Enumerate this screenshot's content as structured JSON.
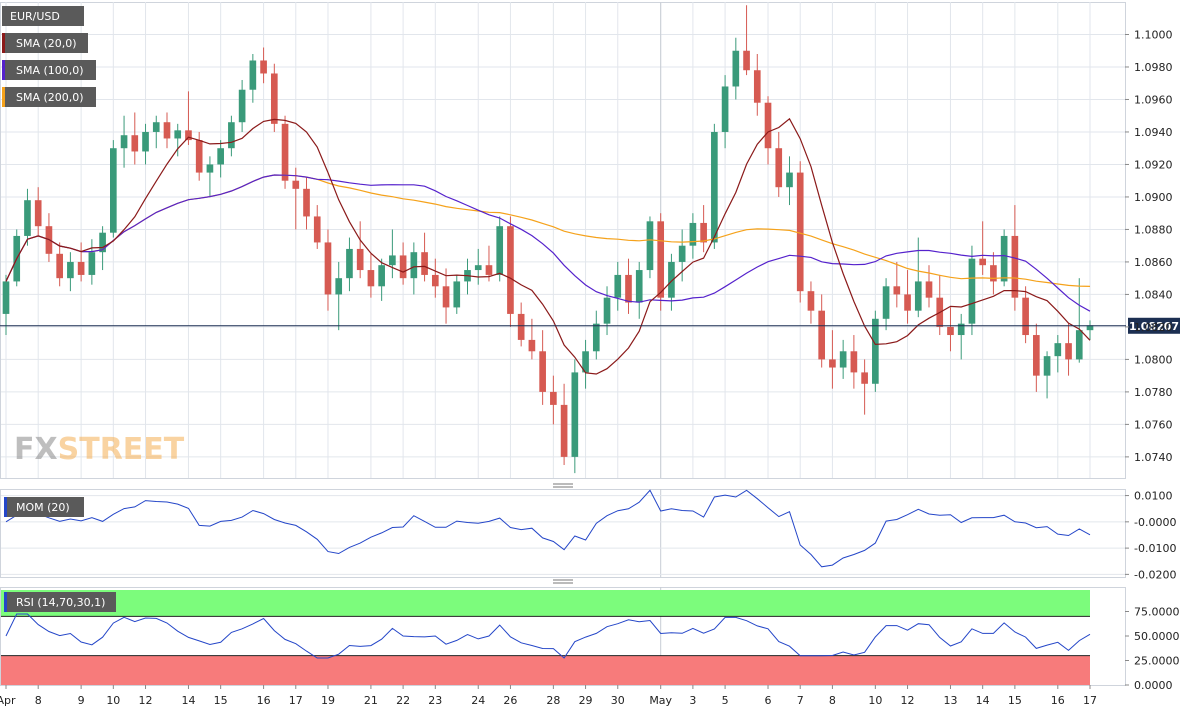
{
  "symbol": "EUR/USD",
  "watermark": {
    "fx": "FX",
    "street": "STREET"
  },
  "colors": {
    "up": "#3a9a7a",
    "down": "#d65a52",
    "sma20": "#8b1a1a",
    "sma100": "#5522cc",
    "sma200": "#f5a21b",
    "mom": "#2446c8",
    "rsi": "#2446c8",
    "rsi_overbought_fill": "#7cfc7c",
    "rsi_oversold_fill": "#f77b7b",
    "price_line": "#1c2f52",
    "grid": "#e2e6ec",
    "label_bg": "#5a5a5a"
  },
  "price_panel": {
    "last_price": "1.08207",
    "last_price_value": 1.08207,
    "ylim": [
      1.0727,
      1.102
    ],
    "yticks": [
      "1.1000",
      "1.0980",
      "1.0960",
      "1.0940",
      "1.0920",
      "1.0900",
      "1.0880",
      "1.0860",
      "1.0840",
      "1.0820",
      "1.0800",
      "1.0780",
      "1.0760",
      "1.0740"
    ],
    "indicators": [
      {
        "label": "SMA (20,0)",
        "color_key": "sma20"
      },
      {
        "label": "SMA (100,0)",
        "color_key": "sma100"
      },
      {
        "label": "SMA (200,0)",
        "color_key": "sma200"
      }
    ]
  },
  "mom_panel": {
    "label": "MOM (20)",
    "ylim": [
      -0.021,
      0.0125
    ],
    "yticks": [
      "0.0100",
      "-0.0000",
      "-0.0100",
      "-0.0200"
    ]
  },
  "rsi_panel": {
    "label": "RSI (14,70,30,1)",
    "ylim": [
      0,
      100
    ],
    "upper": 70,
    "lower": 30,
    "yticks": [
      "75.0000",
      "50.0000",
      "25.0000",
      "0.0000"
    ]
  },
  "x_labels": [
    "Apr",
    "8",
    "9",
    "10",
    "12",
    "14",
    "15",
    "16",
    "17",
    "19",
    "21",
    "22",
    "23",
    "24",
    "26",
    "28",
    "29",
    "30",
    "May",
    "3",
    "5",
    "6",
    "7",
    "8",
    "10",
    "12",
    "13",
    "14",
    "15",
    "16",
    "17"
  ],
  "chart_data": {
    "type": "candlestick",
    "symbol": "EUR/USD",
    "last_price": 1.08207,
    "candles": [
      [
        1.0828,
        1.0852,
        1.0815,
        1.0848
      ],
      [
        1.0848,
        1.088,
        1.0845,
        1.0876
      ],
      [
        1.0876,
        1.0905,
        1.087,
        1.0898
      ],
      [
        1.0898,
        1.0906,
        1.0876,
        1.0882
      ],
      [
        1.0882,
        1.089,
        1.086,
        1.0865
      ],
      [
        1.0865,
        1.0872,
        1.0845,
        1.085
      ],
      [
        1.085,
        1.0866,
        1.0842,
        1.086
      ],
      [
        1.086,
        1.0872,
        1.0848,
        1.0852
      ],
      [
        1.0852,
        1.0874,
        1.0846,
        1.0866
      ],
      [
        1.0866,
        1.0882,
        1.0855,
        1.0878
      ],
      [
        1.0878,
        1.0935,
        1.0875,
        1.093
      ],
      [
        1.093,
        1.095,
        1.0918,
        1.0938
      ],
      [
        1.0938,
        1.0952,
        1.092,
        1.0928
      ],
      [
        1.0928,
        1.0945,
        1.092,
        1.094
      ],
      [
        1.094,
        1.095,
        1.093,
        1.0946
      ],
      [
        1.0946,
        1.0952,
        1.093,
        1.0936
      ],
      [
        1.0936,
        1.0945,
        1.0925,
        1.0941
      ],
      [
        1.0941,
        1.0965,
        1.0932,
        1.0935
      ],
      [
        1.0935,
        1.094,
        1.091,
        1.0915
      ],
      [
        1.0915,
        1.0925,
        1.09,
        1.092
      ],
      [
        1.092,
        1.0935,
        1.0912,
        1.093
      ],
      [
        1.093,
        1.095,
        1.0925,
        1.0946
      ],
      [
        1.0946,
        1.0972,
        1.094,
        1.0966
      ],
      [
        1.0966,
        1.0988,
        1.0958,
        1.0984
      ],
      [
        1.0984,
        1.0992,
        1.097,
        1.0976
      ],
      [
        1.0976,
        1.0982,
        1.094,
        1.0945
      ],
      [
        1.0945,
        1.095,
        1.0905,
        1.091
      ],
      [
        1.091,
        1.0918,
        1.088,
        1.0905
      ],
      [
        1.0905,
        1.0912,
        1.088,
        1.0888
      ],
      [
        1.0888,
        1.0895,
        1.0868,
        1.0872
      ],
      [
        1.0872,
        1.088,
        1.083,
        1.084
      ],
      [
        1.084,
        1.086,
        1.0818,
        1.085
      ],
      [
        1.085,
        1.0875,
        1.0842,
        1.0868
      ],
      [
        1.0868,
        1.0885,
        1.085,
        1.0855
      ],
      [
        1.0855,
        1.0865,
        1.0838,
        1.0845
      ],
      [
        1.0845,
        1.0862,
        1.0836,
        1.0858
      ],
      [
        1.0858,
        1.088,
        1.085,
        1.0864
      ],
      [
        1.0864,
        1.0872,
        1.0846,
        1.085
      ],
      [
        1.085,
        1.0872,
        1.084,
        1.0866
      ],
      [
        1.0866,
        1.0878,
        1.0848,
        1.0852
      ],
      [
        1.0852,
        1.0862,
        1.0838,
        1.0845
      ],
      [
        1.0845,
        1.0856,
        1.0822,
        1.0832
      ],
      [
        1.0832,
        1.0852,
        1.0828,
        1.0848
      ],
      [
        1.0848,
        1.0862,
        1.084,
        1.0855
      ],
      [
        1.0855,
        1.0868,
        1.0846,
        1.0858
      ],
      [
        1.0858,
        1.087,
        1.0848,
        1.0852
      ],
      [
        1.0852,
        1.0888,
        1.0848,
        1.0882
      ],
      [
        1.0882,
        1.0888,
        1.082,
        1.0828
      ],
      [
        1.0828,
        1.0835,
        1.0808,
        1.0812
      ],
      [
        1.0812,
        1.0825,
        1.08,
        1.0805
      ],
      [
        1.0805,
        1.0818,
        1.0772,
        1.078
      ],
      [
        1.078,
        1.079,
        1.076,
        1.0772
      ],
      [
        1.0772,
        1.0785,
        1.0735,
        1.074
      ],
      [
        1.074,
        1.08,
        1.073,
        1.0792
      ],
      [
        1.0792,
        1.0812,
        1.0782,
        1.0805
      ],
      [
        1.0805,
        1.083,
        1.08,
        1.0822
      ],
      [
        1.0822,
        1.0845,
        1.0815,
        1.0838
      ],
      [
        1.0838,
        1.086,
        1.083,
        1.0852
      ],
      [
        1.0852,
        1.0862,
        1.0828,
        1.0835
      ],
      [
        1.0835,
        1.086,
        1.0825,
        1.0855
      ],
      [
        1.0855,
        1.0888,
        1.085,
        1.0885
      ],
      [
        1.0885,
        1.089,
        1.083,
        1.0838
      ],
      [
        1.0838,
        1.0865,
        1.083,
        1.086
      ],
      [
        1.086,
        1.088,
        1.0848,
        1.087
      ],
      [
        1.087,
        1.089,
        1.0862,
        1.0884
      ],
      [
        1.0884,
        1.0895,
        1.0866,
        1.0872
      ],
      [
        1.0872,
        1.0945,
        1.0868,
        1.094
      ],
      [
        1.094,
        1.0975,
        1.093,
        1.0968
      ],
      [
        1.0968,
        1.0998,
        1.096,
        1.099
      ],
      [
        1.099,
        1.1018,
        1.0975,
        1.0978
      ],
      [
        1.0978,
        1.0988,
        1.095,
        1.0958
      ],
      [
        1.0958,
        1.0962,
        1.092,
        1.093
      ],
      [
        1.093,
        1.094,
        1.09,
        1.0906
      ],
      [
        1.0906,
        1.0925,
        1.0895,
        1.0915
      ],
      [
        1.0915,
        1.0922,
        1.0835,
        1.0842
      ],
      [
        1.0842,
        1.0848,
        1.0822,
        1.083
      ],
      [
        1.083,
        1.084,
        1.0795,
        1.08
      ],
      [
        1.08,
        1.0818,
        1.0782,
        1.0795
      ],
      [
        1.0795,
        1.0812,
        1.0788,
        1.0805
      ],
      [
        1.0805,
        1.0815,
        1.0782,
        1.0792
      ],
      [
        1.0792,
        1.08,
        1.0766,
        1.0785
      ],
      [
        1.0785,
        1.083,
        1.078,
        1.0825
      ],
      [
        1.0825,
        1.085,
        1.0818,
        1.0845
      ],
      [
        1.0845,
        1.086,
        1.0832,
        1.084
      ],
      [
        1.084,
        1.0855,
        1.0822,
        1.083
      ],
      [
        1.083,
        1.0875,
        1.0826,
        1.0848
      ],
      [
        1.0848,
        1.0858,
        1.0832,
        1.0838
      ],
      [
        1.0838,
        1.0852,
        1.0815,
        1.082
      ],
      [
        1.082,
        1.0832,
        1.0805,
        1.0815
      ],
      [
        1.0815,
        1.0828,
        1.08,
        1.0822
      ],
      [
        1.0822,
        1.087,
        1.0815,
        1.0862
      ],
      [
        1.0862,
        1.0885,
        1.0852,
        1.0858
      ],
      [
        1.0858,
        1.0866,
        1.084,
        1.0848
      ],
      [
        1.0848,
        1.088,
        1.0845,
        1.0876
      ],
      [
        1.0876,
        1.0895,
        1.083,
        1.0838
      ],
      [
        1.0838,
        1.0845,
        1.081,
        1.0815
      ],
      [
        1.0815,
        1.0822,
        1.078,
        1.079
      ],
      [
        1.079,
        1.0805,
        1.0776,
        1.0802
      ],
      [
        1.0802,
        1.0815,
        1.0792,
        1.081
      ],
      [
        1.081,
        1.0822,
        1.079,
        1.08
      ],
      [
        1.08,
        1.085,
        1.0798,
        1.0818
      ],
      [
        1.0818,
        1.0824,
        1.0812,
        1.0821
      ]
    ],
    "sma20_style": "dark red line",
    "sma100_style": "purple line",
    "sma200_style": "orange line",
    "mom_ylim": [
      -0.021,
      0.0125
    ],
    "rsi_ylim": [
      0,
      100
    ],
    "rsi_levels": [
      70,
      30
    ]
  }
}
